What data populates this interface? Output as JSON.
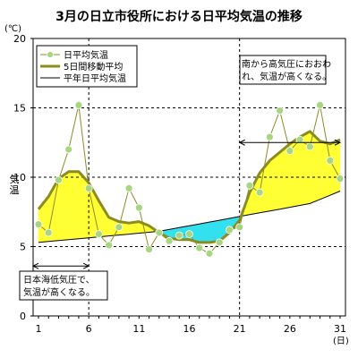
{
  "chart_data": {
    "type": "line",
    "title": "3月の日立市役所における日平均気温の推移",
    "unit_label": "(℃)",
    "ylabel": "気温",
    "x_unit_label": "(日)",
    "x_ticks": [
      "1",
      "6",
      "11",
      "16",
      "21",
      "26",
      "31"
    ],
    "y_ticks": [
      "0",
      "5",
      "10",
      "15",
      "20"
    ],
    "xlim": [
      1,
      31
    ],
    "ylim": [
      0,
      20
    ],
    "grid": "horizontal dashed at 5, 10, 15; vertical dashed at 6 and 21",
    "legend_position": "top-left",
    "x": [
      1,
      2,
      3,
      4,
      5,
      6,
      7,
      8,
      9,
      10,
      11,
      12,
      13,
      14,
      15,
      16,
      17,
      18,
      19,
      20,
      21,
      22,
      23,
      24,
      25,
      26,
      27,
      28,
      29,
      30,
      31
    ],
    "series": [
      {
        "name": "日平均気温",
        "style": "thin olive line with open green circle markers",
        "color": "#8c8c2a",
        "marker_color": "#a6d680",
        "values": [
          6.6,
          6.0,
          9.8,
          12.0,
          15.2,
          9.2,
          5.9,
          5.1,
          6.4,
          9.2,
          7.8,
          4.8,
          6.0,
          5.4,
          5.8,
          5.9,
          4.9,
          4.5,
          5.3,
          6.2,
          6.4,
          9.4,
          8.9,
          12.9,
          14.8,
          11.9,
          12.7,
          12.2,
          15.2,
          11.2,
          9.9
        ]
      },
      {
        "name": "5日間移動平均",
        "style": "thick olive line",
        "color": "#8c8c1e",
        "values": [
          7.7,
          8.6,
          9.9,
          10.4,
          10.4,
          9.6,
          8.3,
          7.1,
          6.8,
          6.7,
          6.8,
          6.5,
          6.0,
          5.6,
          5.5,
          5.5,
          5.3,
          5.3,
          5.4,
          6.0,
          6.9,
          8.9,
          10.3,
          11.2,
          11.8,
          12.4,
          12.9,
          13.3,
          12.6,
          12.4,
          12.7
        ]
      },
      {
        "name": "平年日平均気温",
        "style": "thin black line",
        "color": "#000000",
        "values": [
          5.3,
          5.37,
          5.43,
          5.5,
          5.57,
          5.63,
          5.7,
          5.77,
          5.83,
          5.9,
          5.97,
          6.03,
          6.1,
          6.23,
          6.37,
          6.5,
          6.63,
          6.77,
          6.9,
          7.03,
          7.17,
          7.3,
          7.43,
          7.57,
          7.7,
          7.83,
          7.97,
          8.1,
          8.4,
          8.7,
          9.0
        ]
      }
    ],
    "fill_colors": {
      "above_normal": "#ffff33",
      "below_normal": "#33e0ee"
    },
    "annotations": [
      {
        "text_line1": "南から高気圧におおわ",
        "text_line2": "れ、気温が高くなる。",
        "span": [
          21,
          31
        ]
      },
      {
        "text_line1": "日本海低気圧で、",
        "text_line2": "気温が高くなる。",
        "span": [
          1,
          6
        ]
      }
    ]
  }
}
